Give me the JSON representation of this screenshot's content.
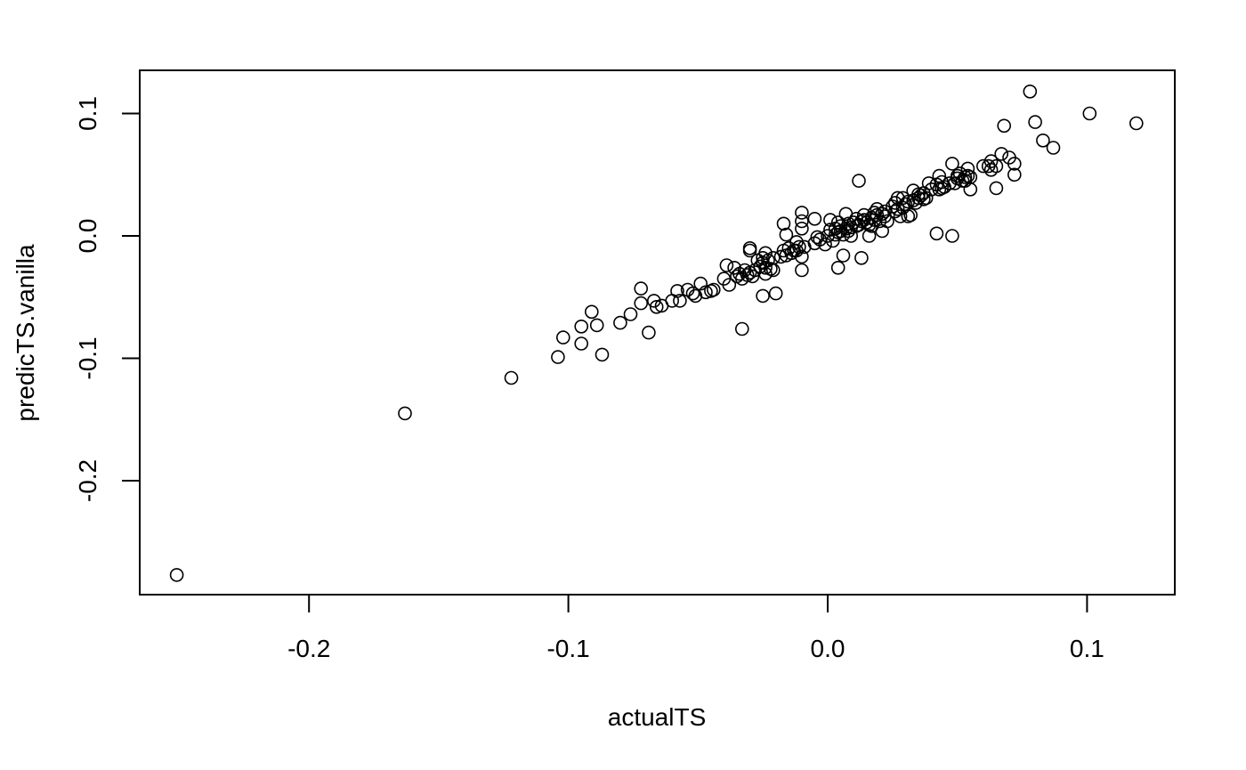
{
  "chart_data": {
    "type": "scatter",
    "title": "",
    "xlabel": "actualTS",
    "ylabel": "predicTS.vanilla",
    "xlim": [
      -0.265,
      0.135
    ],
    "ylim": [
      -0.285,
      0.135
    ],
    "xticks": [
      -0.2,
      -0.1,
      0.0,
      0.1
    ],
    "xtick_labels": [
      "-0.2",
      "-0.1",
      "0.0",
      "0.1"
    ],
    "yticks": [
      -0.2,
      -0.1,
      0.0,
      0.1
    ],
    "ytick_labels": [
      "-0.2",
      "-0.1",
      "0.0",
      "0.1"
    ],
    "grid": false,
    "marker": "open-circle",
    "points": [
      [
        -0.251,
        -0.277
      ],
      [
        -0.163,
        -0.145
      ],
      [
        -0.122,
        -0.116
      ],
      [
        -0.104,
        -0.099
      ],
      [
        -0.102,
        -0.083
      ],
      [
        -0.095,
        -0.088
      ],
      [
        -0.095,
        -0.074
      ],
      [
        -0.091,
        -0.062
      ],
      [
        -0.089,
        -0.073
      ],
      [
        -0.087,
        -0.097
      ],
      [
        -0.08,
        -0.071
      ],
      [
        -0.076,
        -0.064
      ],
      [
        -0.072,
        -0.043
      ],
      [
        -0.072,
        -0.055
      ],
      [
        -0.069,
        -0.079
      ],
      [
        -0.067,
        -0.053
      ],
      [
        -0.066,
        -0.058
      ],
      [
        -0.064,
        -0.057
      ],
      [
        -0.06,
        -0.053
      ],
      [
        -0.058,
        -0.045
      ],
      [
        -0.057,
        -0.053
      ],
      [
        -0.054,
        -0.044
      ],
      [
        -0.052,
        -0.047
      ],
      [
        -0.051,
        -0.049
      ],
      [
        -0.049,
        -0.039
      ],
      [
        -0.047,
        -0.046
      ],
      [
        -0.045,
        -0.045
      ],
      [
        -0.044,
        -0.044
      ],
      [
        -0.04,
        -0.035
      ],
      [
        -0.039,
        -0.024
      ],
      [
        -0.038,
        -0.04
      ],
      [
        -0.036,
        -0.026
      ],
      [
        -0.035,
        -0.033
      ],
      [
        -0.034,
        -0.031
      ],
      [
        -0.033,
        -0.035
      ],
      [
        -0.033,
        -0.076
      ],
      [
        -0.032,
        -0.028
      ],
      [
        -0.031,
        -0.032
      ],
      [
        -0.03,
        -0.01
      ],
      [
        -0.03,
        -0.03
      ],
      [
        -0.03,
        -0.012
      ],
      [
        -0.029,
        -0.033
      ],
      [
        -0.028,
        -0.028
      ],
      [
        -0.027,
        -0.02
      ],
      [
        -0.026,
        -0.025
      ],
      [
        -0.025,
        -0.022
      ],
      [
        -0.025,
        -0.018
      ],
      [
        -0.025,
        -0.049
      ],
      [
        -0.024,
        -0.026
      ],
      [
        -0.024,
        -0.014
      ],
      [
        -0.024,
        -0.031
      ],
      [
        -0.023,
        -0.02
      ],
      [
        -0.022,
        -0.027
      ],
      [
        -0.021,
        -0.018
      ],
      [
        -0.021,
        -0.028
      ],
      [
        -0.02,
        -0.047
      ],
      [
        -0.018,
        -0.017
      ],
      [
        -0.017,
        -0.012
      ],
      [
        -0.017,
        0.01
      ],
      [
        -0.016,
        -0.016
      ],
      [
        -0.016,
        0.001
      ],
      [
        -0.015,
        -0.01
      ],
      [
        -0.014,
        -0.014
      ],
      [
        -0.013,
        -0.012
      ],
      [
        -0.012,
        -0.012
      ],
      [
        -0.012,
        -0.005
      ],
      [
        -0.011,
        -0.009
      ],
      [
        -0.01,
        0.012
      ],
      [
        -0.01,
        -0.028
      ],
      [
        -0.01,
        -0.017
      ],
      [
        -0.01,
        0.019
      ],
      [
        -0.01,
        0.006
      ],
      [
        -0.009,
        -0.009
      ],
      [
        -0.005,
        0.014
      ],
      [
        -0.005,
        -0.006
      ],
      [
        -0.004,
        -0.001
      ],
      [
        -0.003,
        -0.003
      ],
      [
        -0.001,
        -0.007
      ],
      [
        0.0,
        0.0
      ],
      [
        0.001,
        0.005
      ],
      [
        0.001,
        0.013
      ],
      [
        0.002,
        -0.004
      ],
      [
        0.003,
        0.001
      ],
      [
        0.003,
        0.006
      ],
      [
        0.004,
        0.011
      ],
      [
        0.004,
        0.003
      ],
      [
        0.004,
        -0.026
      ],
      [
        0.005,
        0.008
      ],
      [
        0.005,
        0.004
      ],
      [
        0.006,
        0.001
      ],
      [
        0.006,
        -0.016
      ],
      [
        0.007,
        0.018
      ],
      [
        0.007,
        0.006
      ],
      [
        0.008,
        0.004
      ],
      [
        0.008,
        0.01
      ],
      [
        0.009,
        0.0
      ],
      [
        0.009,
        0.007
      ],
      [
        0.01,
        0.011
      ],
      [
        0.011,
        0.008
      ],
      [
        0.011,
        0.014
      ],
      [
        0.012,
        0.045
      ],
      [
        0.012,
        0.009
      ],
      [
        0.013,
        0.012
      ],
      [
        0.013,
        -0.018
      ],
      [
        0.014,
        0.017
      ],
      [
        0.014,
        0.013
      ],
      [
        0.015,
        0.011
      ],
      [
        0.016,
        0.0
      ],
      [
        0.016,
        0.009
      ],
      [
        0.017,
        0.015
      ],
      [
        0.017,
        0.008
      ],
      [
        0.018,
        0.019
      ],
      [
        0.018,
        0.013
      ],
      [
        0.019,
        0.017
      ],
      [
        0.019,
        0.022
      ],
      [
        0.02,
        0.012
      ],
      [
        0.021,
        0.004
      ],
      [
        0.021,
        0.018
      ],
      [
        0.022,
        0.016
      ],
      [
        0.022,
        0.02
      ],
      [
        0.023,
        0.012
      ],
      [
        0.025,
        0.024
      ],
      [
        0.026,
        0.02
      ],
      [
        0.026,
        0.027
      ],
      [
        0.027,
        0.031
      ],
      [
        0.027,
        0.022
      ],
      [
        0.028,
        0.016
      ],
      [
        0.029,
        0.031
      ],
      [
        0.029,
        0.023
      ],
      [
        0.03,
        0.026
      ],
      [
        0.031,
        0.016
      ],
      [
        0.031,
        0.028
      ],
      [
        0.032,
        0.017
      ],
      [
        0.033,
        0.037
      ],
      [
        0.033,
        0.029
      ],
      [
        0.034,
        0.027
      ],
      [
        0.035,
        0.031
      ],
      [
        0.035,
        0.034
      ],
      [
        0.036,
        0.033
      ],
      [
        0.037,
        0.035
      ],
      [
        0.037,
        0.03
      ],
      [
        0.038,
        0.031
      ],
      [
        0.039,
        0.043
      ],
      [
        0.04,
        0.038
      ],
      [
        0.042,
        0.002
      ],
      [
        0.042,
        0.042
      ],
      [
        0.043,
        0.049
      ],
      [
        0.043,
        0.038
      ],
      [
        0.044,
        0.044
      ],
      [
        0.044,
        0.039
      ],
      [
        0.045,
        0.04
      ],
      [
        0.047,
        0.043
      ],
      [
        0.048,
        0.059
      ],
      [
        0.048,
        0.0
      ],
      [
        0.049,
        0.043
      ],
      [
        0.05,
        0.049
      ],
      [
        0.05,
        0.047
      ],
      [
        0.051,
        0.051
      ],
      [
        0.052,
        0.045
      ],
      [
        0.053,
        0.048
      ],
      [
        0.053,
        0.045
      ],
      [
        0.054,
        0.049
      ],
      [
        0.054,
        0.055
      ],
      [
        0.055,
        0.038
      ],
      [
        0.055,
        0.048
      ],
      [
        0.06,
        0.057
      ],
      [
        0.062,
        0.057
      ],
      [
        0.063,
        0.061
      ],
      [
        0.063,
        0.054
      ],
      [
        0.065,
        0.039
      ],
      [
        0.065,
        0.057
      ],
      [
        0.067,
        0.067
      ],
      [
        0.068,
        0.09
      ],
      [
        0.07,
        0.064
      ],
      [
        0.072,
        0.059
      ],
      [
        0.072,
        0.05
      ],
      [
        0.078,
        0.118
      ],
      [
        0.08,
        0.093
      ],
      [
        0.083,
        0.078
      ],
      [
        0.087,
        0.072
      ],
      [
        0.101,
        0.1
      ],
      [
        0.119,
        0.092
      ]
    ]
  }
}
